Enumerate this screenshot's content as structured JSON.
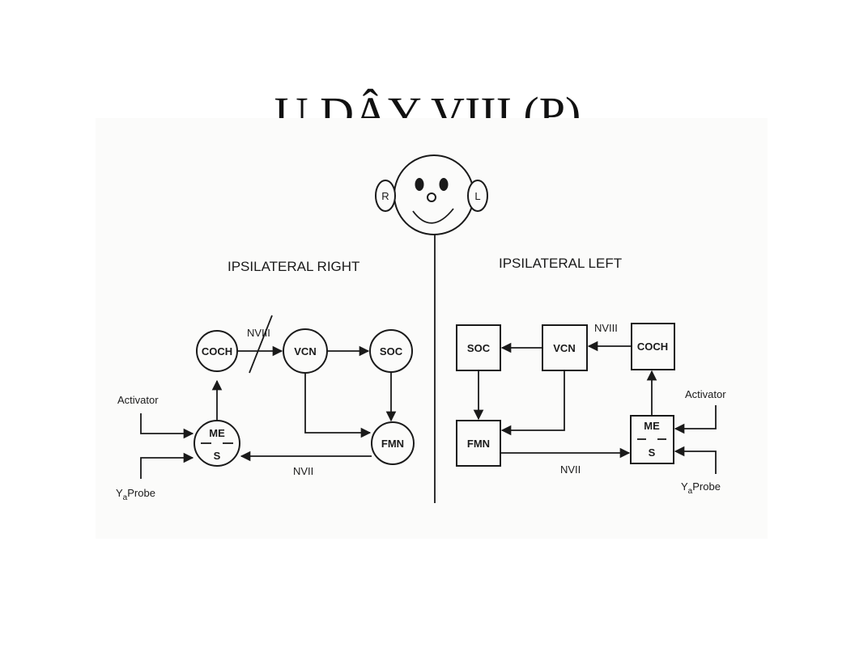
{
  "slide": {
    "title": "U DÂY VIII (P)"
  },
  "face": {
    "right_ear": "R",
    "left_ear": "L"
  },
  "ipsilateral_right": {
    "heading": "IPSILATERAL RIGHT",
    "nodes": {
      "coch": "COCH",
      "vcn": "VCN",
      "soc": "SOC",
      "fmn": "FMN",
      "me": "ME",
      "s": "S"
    },
    "nerve_viii": "NVIII",
    "nerve_vii": "NVII",
    "activator": "Activator",
    "probe_y": "Y",
    "probe_sub": "a",
    "probe_word": "Probe"
  },
  "ipsilateral_left": {
    "heading": "IPSILATERAL LEFT",
    "nodes": {
      "coch": "COCH",
      "vcn": "VCN",
      "soc": "SOC",
      "fmn": "FMN",
      "me": "ME",
      "s": "S"
    },
    "nerve_viii": "NVIII",
    "nerve_vii": "NVII",
    "activator": "Activator",
    "probe_y": "Y",
    "probe_sub": "a",
    "probe_word": "Probe"
  }
}
